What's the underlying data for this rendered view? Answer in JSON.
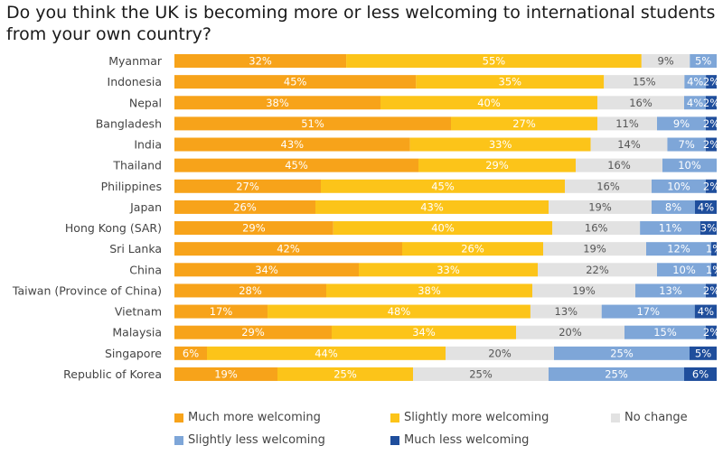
{
  "chart_data": {
    "type": "bar",
    "orientation": "horizontal",
    "stacked": true,
    "title": "Do you think the UK is becoming more or less welcoming to international students from your own country?",
    "categories": [
      "Myanmar",
      "Indonesia",
      "Nepal",
      "Bangladesh",
      "India",
      "Thailand",
      "Philippines",
      "Japan",
      "Hong Kong (SAR)",
      "Sri Lanka",
      "China",
      "Taiwan (Province of China)",
      "Vietnam",
      "Malaysia",
      "Singapore",
      "Republic of Korea"
    ],
    "series": [
      {
        "name": "Much more welcoming",
        "color": "#f7a31a",
        "values": [
          32,
          45,
          38,
          51,
          43,
          45,
          27,
          26,
          29,
          42,
          34,
          28,
          17,
          29,
          6,
          19
        ]
      },
      {
        "name": "Slightly more welcoming",
        "color": "#fcc419",
        "values": [
          55,
          35,
          40,
          27,
          33,
          29,
          45,
          43,
          40,
          26,
          33,
          38,
          48,
          34,
          44,
          25
        ]
      },
      {
        "name": "No change",
        "color": "#e2e2e2",
        "values": [
          9,
          15,
          16,
          11,
          14,
          16,
          16,
          19,
          16,
          19,
          22,
          19,
          13,
          20,
          20,
          25
        ]
      },
      {
        "name": "Slightly less welcoming",
        "color": "#7ea6d8",
        "values": [
          5,
          4,
          4,
          9,
          7,
          10,
          10,
          8,
          11,
          12,
          10,
          13,
          17,
          15,
          25,
          25
        ]
      },
      {
        "name": "Much less welcoming",
        "color": "#1f4e9c",
        "values": [
          0,
          2,
          2,
          2,
          2,
          0,
          2,
          4,
          3,
          1,
          1,
          2,
          4,
          2,
          5,
          6
        ]
      }
    ],
    "legend_position": "bottom",
    "grid": false
  }
}
